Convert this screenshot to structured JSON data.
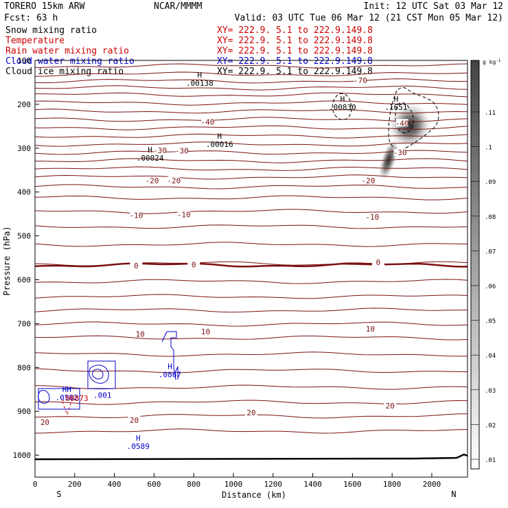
{
  "header": {
    "model": "TORERO  15km ARW",
    "center": "NCAR/MMMM",
    "init": "Init: 12 UTC Sat 03 Mar 12",
    "fcst": "Fcst:   63 h",
    "valid": "Valid: 03 UTC Tue 06 Mar 12 (21 CST Mon 05 Mar 12)"
  },
  "legend": {
    "xy_text": "XY= 222.9.  5.1 to 222.9.149.8",
    "entries": [
      {
        "label": "Snow mixing ratio",
        "color": "#000000",
        "xy_color": "#cc0000"
      },
      {
        "label": "Temperature",
        "color": "#cc0000",
        "xy_color": "#cc0000"
      },
      {
        "label": "Rain water mixing ratio",
        "color": "#cc0000",
        "xy_color": "#cc0000"
      },
      {
        "label": "Cloud water mixing ratio",
        "color": "#0000cc",
        "xy_color": "#0000cc"
      },
      {
        "label": "Cloud ice mixing ratio",
        "color": "#000000",
        "xy_color": "#000000"
      }
    ]
  },
  "chart_data": {
    "type": "cross-section",
    "xlabel": "Distance (km)",
    "ylabel": "Pressure (hPa)",
    "xlim": [
      0,
      2180
    ],
    "ylim": [
      1050,
      100
    ],
    "x_ticks": [
      0,
      200,
      400,
      600,
      800,
      1000,
      1200,
      1400,
      1600,
      1800,
      2000
    ],
    "y_ticks": [
      100,
      200,
      300,
      400,
      500,
      600,
      700,
      800,
      900,
      1000
    ],
    "left_end": "S",
    "right_end": "N",
    "colorbar": {
      "unit": "g kg",
      "unit_exp": "-1",
      "ticks": [
        ".01",
        ".02",
        ".03",
        ".04",
        ".05",
        ".06",
        ".07",
        ".08",
        ".09",
        ".1",
        ".11"
      ]
    },
    "temperature_labels": [
      {
        "text": "-70",
        "x": 1640,
        "p": 145
      },
      {
        "text": "-40",
        "x": 870,
        "p": 240
      },
      {
        "text": "-40",
        "x": 1850,
        "p": 243
      },
      {
        "text": "-30",
        "x": 630,
        "p": 305
      },
      {
        "text": "-30",
        "x": 740,
        "p": 306
      },
      {
        "text": "-30",
        "x": 1840,
        "p": 310
      },
      {
        "text": "-20",
        "x": 590,
        "p": 374
      },
      {
        "text": "-20",
        "x": 700,
        "p": 374
      },
      {
        "text": "-20",
        "x": 1680,
        "p": 374
      },
      {
        "text": "-10",
        "x": 510,
        "p": 453
      },
      {
        "text": "-10",
        "x": 750,
        "p": 451
      },
      {
        "text": "-10",
        "x": 1700,
        "p": 457
      },
      {
        "text": "0",
        "x": 510,
        "p": 568
      },
      {
        "text": "0",
        "x": 800,
        "p": 566
      },
      {
        "text": "0",
        "x": 1730,
        "p": 560
      },
      {
        "text": "10",
        "x": 530,
        "p": 724
      },
      {
        "text": "10",
        "x": 860,
        "p": 718
      },
      {
        "text": "10",
        "x": 1690,
        "p": 712
      },
      {
        "text": "20",
        "x": 50,
        "p": 925
      },
      {
        "text": "20",
        "x": 500,
        "p": 920
      },
      {
        "text": "20",
        "x": 1090,
        "p": 903
      },
      {
        "text": "20",
        "x": 1790,
        "p": 887
      }
    ],
    "extrema_labels": [
      {
        "marker": "H",
        "value": ".00138",
        "x": 830,
        "p": 145,
        "color": "#000000"
      },
      {
        "marker": "H",
        "value": ".00830",
        "x": 1550,
        "p": 200,
        "color": "#000000"
      },
      {
        "marker": "H",
        "value": ".1651",
        "x": 1820,
        "p": 200,
        "color": "#000000"
      },
      {
        "marker": "H",
        "value": ".00016",
        "x": 930,
        "p": 285,
        "color": "#000000"
      },
      {
        "marker": "H",
        "value": ".00024",
        "x": 580,
        "p": 316,
        "color": "#000000"
      },
      {
        "marker": "H",
        "value": ".0867",
        "x": 680,
        "p": 810,
        "color": "#0000cc"
      },
      {
        "marker": "H",
        "value": ".0589",
        "x": 520,
        "p": 973,
        "color": "#0000cc"
      },
      {
        "marker": "HH",
        "value": ".0582",
        "x": 160,
        "p": 862,
        "color": "#0000cc"
      },
      {
        "marker": "",
        "value": ".00873",
        "x": 200,
        "p": 864,
        "color": "#cc0000"
      },
      {
        "marker": "",
        "value": ".001",
        "x": 340,
        "p": 857,
        "color": "#0000cc"
      }
    ]
  }
}
